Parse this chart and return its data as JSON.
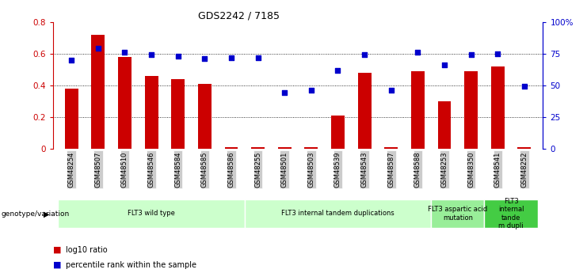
{
  "title": "GDS2242 / 7185",
  "samples": [
    "GSM48254",
    "GSM48507",
    "GSM48510",
    "GSM48546",
    "GSM48584",
    "GSM48585",
    "GSM48586",
    "GSM48255",
    "GSM48501",
    "GSM48503",
    "GSM48539",
    "GSM48543",
    "GSM48587",
    "GSM48588",
    "GSM48253",
    "GSM48350",
    "GSM48541",
    "GSM48252"
  ],
  "log10_ratio_all": [
    0.38,
    0.72,
    0.58,
    0.46,
    0.44,
    0.41,
    0.01,
    0.01,
    0.01,
    0.01,
    0.21,
    0.48,
    0.01,
    0.49,
    0.3,
    0.49,
    0.52,
    0.01
  ],
  "percentile_rank": [
    0.7,
    0.79,
    0.76,
    0.74,
    0.73,
    0.71,
    0.72,
    0.72,
    0.44,
    0.46,
    0.62,
    0.74,
    0.46,
    0.76,
    0.66,
    0.74,
    0.75,
    0.49
  ],
  "bar_color": "#cc0000",
  "dot_color": "#0000cc",
  "ylim_left": [
    0,
    0.8
  ],
  "ylim_right": [
    0,
    100
  ],
  "yticks_left": [
    0,
    0.2,
    0.4,
    0.6,
    0.8
  ],
  "ytick_labels_left": [
    "0",
    "0.2",
    "0.4",
    "0.6",
    "0.8"
  ],
  "yticks_right": [
    0,
    25,
    50,
    75,
    100
  ],
  "ytick_labels_right": [
    "0",
    "25",
    "50",
    "75",
    "100%"
  ],
  "grid_values": [
    0.2,
    0.4,
    0.6
  ],
  "groups": [
    {
      "label": "FLT3 wild type",
      "start": 0,
      "end": 6,
      "color": "#ccffcc"
    },
    {
      "label": "FLT3 internal tandem duplications",
      "start": 7,
      "end": 13,
      "color": "#ccffcc"
    },
    {
      "label": "FLT3 aspartic acid\nmutation",
      "start": 14,
      "end": 15,
      "color": "#99ee99"
    },
    {
      "label": "FLT3\ninternal\ntande\nm dupli",
      "start": 16,
      "end": 17,
      "color": "#44cc44"
    }
  ],
  "group_row_label": "genotype/variation",
  "legend_items": [
    {
      "color": "#cc0000",
      "label": "log10 ratio"
    },
    {
      "color": "#0000cc",
      "label": "percentile rank within the sample"
    }
  ],
  "bar_width": 0.5,
  "dot_size": 18,
  "background_color": "#ffffff",
  "tick_label_bg": "#cccccc"
}
